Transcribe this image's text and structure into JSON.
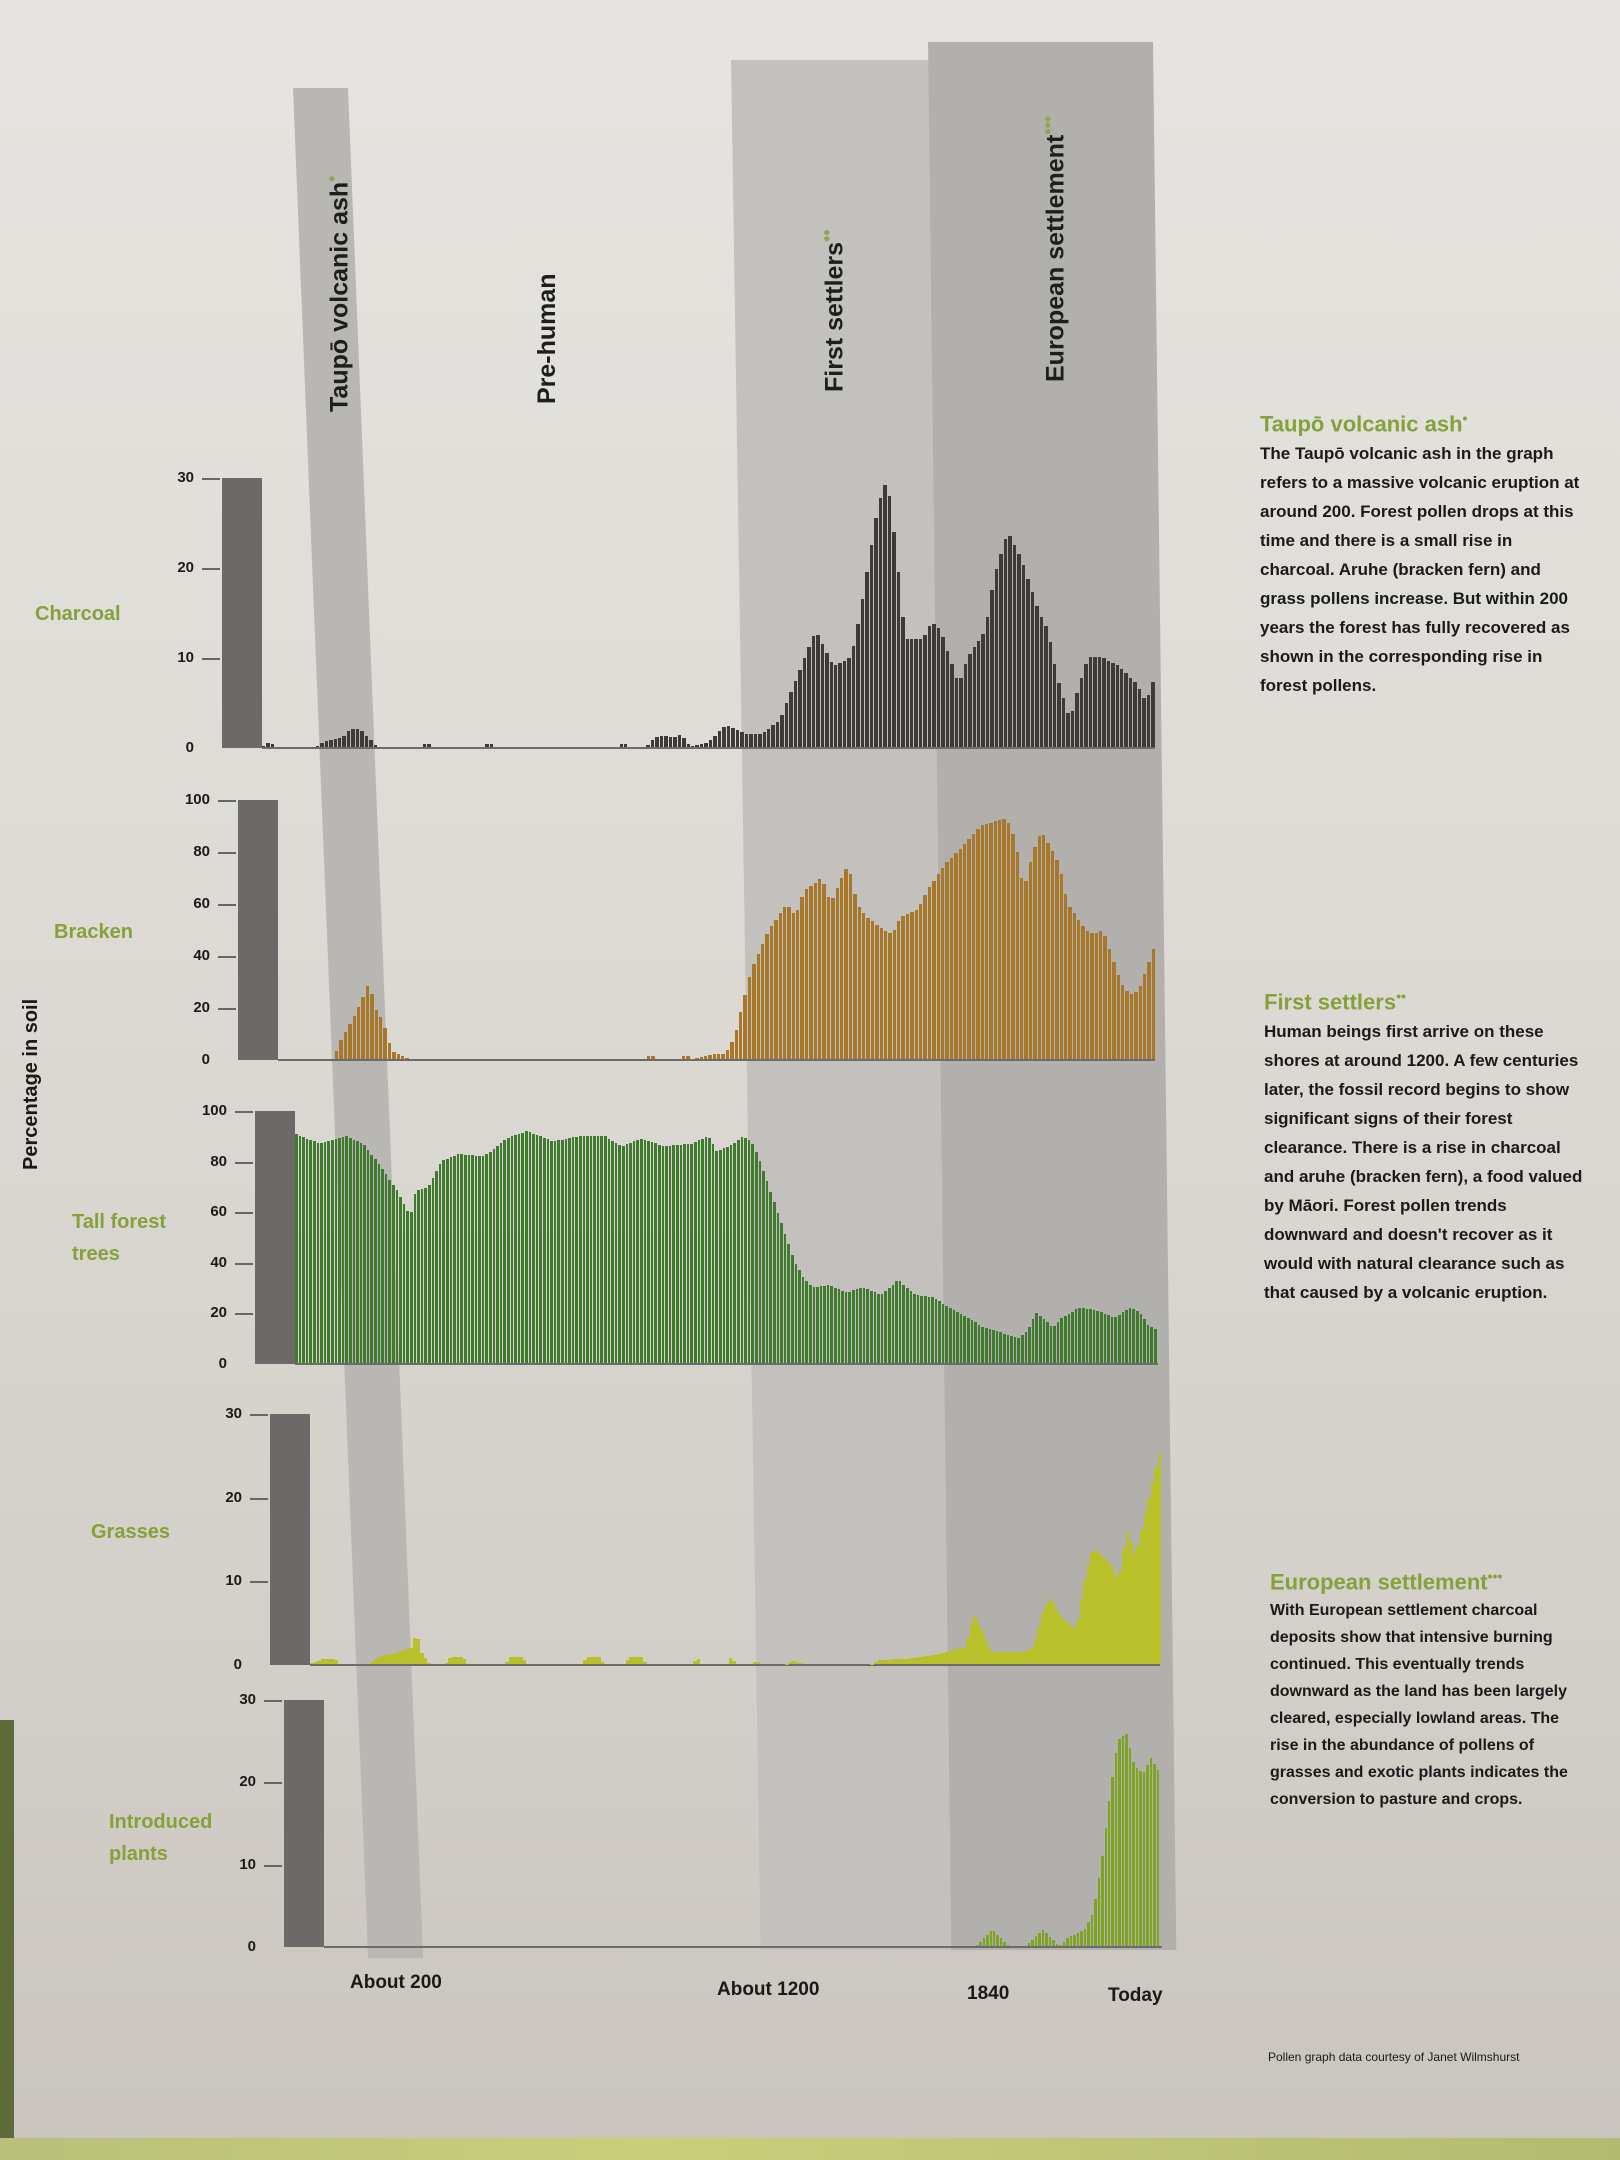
{
  "periods": [
    {
      "label": "Taupō volcanic ash",
      "dots": "•"
    },
    {
      "label": "Pre-human",
      "dots": ""
    },
    {
      "label": "First settlers",
      "dots": "••"
    },
    {
      "label": "European settlement",
      "dots": "•••"
    }
  ],
  "y_axis_title": "Percentage in soil",
  "x_labels": [
    "About 200",
    "About 1200",
    "1840",
    "Today"
  ],
  "notes": [
    {
      "title": "Taupō volcanic ash",
      "dots": "•",
      "body": "The Taupō volcanic ash in the graph refers to a massive volcanic eruption at around 200. Forest pollen drops at this time and there is a small rise in charcoal. Aruhe (bracken fern) and grass pollens increase. But within 200 years the forest has fully recovered as shown in the corresponding rise in forest pollens."
    },
    {
      "title": "First settlers",
      "dots": "••",
      "body": "Human beings first arrive on these shores at around 1200. A few centuries later, the fossil record begins to show significant signs of their forest clearance. There is a rise in charcoal and aruhe (bracken fern), a food valued by Māori. Forest pollen trends downward and doesn't recover as it would with natural clearance such as that caused by a volcanic eruption."
    },
    {
      "title": "European settlement",
      "dots": "•••",
      "body": "With European settlement charcoal deposits show that intensive burning continued. This eventually trends downward as the land has been largely cleared, especially lowland areas. The rise in the abundance of pollens of grasses and exotic plants indicates the conversion to pasture and crops."
    }
  ],
  "credit": "Pollen graph data courtesy of Janet Wilmshurst",
  "colors": {
    "charcoal": "#3f3a3a",
    "bracken": "#a8782a",
    "tall_forest": "#3f7a2e",
    "grasses": "#b8c12a",
    "introduced": "#7fa323",
    "label_green": "#86a03a"
  },
  "series_labels": [
    "Charcoal",
    "Bracken",
    "Tall forest trees",
    "Grasses",
    "Introduced plants"
  ],
  "ticks": {
    "charcoal": [
      "30",
      "20",
      "10",
      "0"
    ],
    "bracken": [
      "100",
      "80",
      "60",
      "40",
      "20",
      "0"
    ],
    "tall_forest": [
      "100",
      "80",
      "60",
      "40",
      "20",
      "0"
    ],
    "grasses": [
      "30",
      "20",
      "10",
      "0"
    ],
    "introduced": [
      "30",
      "20",
      "10",
      "0"
    ]
  },
  "chart_data": {
    "type": "bar",
    "title": "Pollen and charcoal record in soil",
    "ylabel": "Percentage in soil",
    "xlabel": "",
    "x_ticks": [
      "About 200",
      "About 1200",
      "1840",
      "Today"
    ],
    "x_tick_positions": [
      0.13,
      0.55,
      0.79,
      0.97
    ],
    "periods": [
      {
        "name": "Taupō volcanic ash",
        "x_range": [
          0.08,
          0.15
        ]
      },
      {
        "name": "Pre-human",
        "x_range": [
          0.15,
          0.5
        ]
      },
      {
        "name": "First settlers",
        "x_range": [
          0.5,
          0.74
        ]
      },
      {
        "name": "European settlement",
        "x_range": [
          0.74,
          1.0
        ]
      }
    ],
    "series": [
      {
        "name": "Charcoal",
        "ylim": [
          0,
          30
        ],
        "bars": 200,
        "keyframes": [
          [
            0,
            0
          ],
          [
            0.01,
            0.6
          ],
          [
            0.015,
            0
          ],
          [
            0.06,
            0
          ],
          [
            0.07,
            0.6
          ],
          [
            0.09,
            1
          ],
          [
            0.1,
            2
          ],
          [
            0.11,
            2
          ],
          [
            0.12,
            1
          ],
          [
            0.13,
            0
          ],
          [
            0.18,
            0
          ],
          [
            0.185,
            0.7
          ],
          [
            0.19,
            0
          ],
          [
            0.25,
            0
          ],
          [
            0.255,
            0.7
          ],
          [
            0.26,
            0
          ],
          [
            0.4,
            0
          ],
          [
            0.405,
            0.7
          ],
          [
            0.41,
            0
          ],
          [
            0.43,
            0
          ],
          [
            0.44,
            1
          ],
          [
            0.45,
            1.3
          ],
          [
            0.46,
            1
          ],
          [
            0.47,
            1.4
          ],
          [
            0.48,
            0
          ],
          [
            0.5,
            0.5
          ],
          [
            0.51,
            1.5
          ],
          [
            0.52,
            2.5
          ],
          [
            0.54,
            1.5
          ],
          [
            0.56,
            1.5
          ],
          [
            0.58,
            3
          ],
          [
            0.6,
            8
          ],
          [
            0.62,
            13
          ],
          [
            0.63,
            11
          ],
          [
            0.64,
            9
          ],
          [
            0.66,
            10
          ],
          [
            0.67,
            15
          ],
          [
            0.69,
            27
          ],
          [
            0.7,
            30
          ],
          [
            0.71,
            22
          ],
          [
            0.72,
            12
          ],
          [
            0.74,
            12
          ],
          [
            0.75,
            14
          ],
          [
            0.76,
            13
          ],
          [
            0.78,
            7
          ],
          [
            0.79,
            10
          ],
          [
            0.81,
            13
          ],
          [
            0.82,
            19
          ],
          [
            0.835,
            24
          ],
          [
            0.85,
            21
          ],
          [
            0.87,
            15
          ],
          [
            0.88,
            13
          ],
          [
            0.89,
            8
          ],
          [
            0.905,
            3
          ],
          [
            0.915,
            7
          ],
          [
            0.925,
            10
          ],
          [
            0.94,
            10
          ],
          [
            0.96,
            9
          ],
          [
            0.98,
            7
          ],
          [
            0.99,
            5
          ],
          [
            1.0,
            8
          ]
        ]
      },
      {
        "name": "Bracken",
        "ylim": [
          0,
          100
        ],
        "bars": 200,
        "keyframes": [
          [
            0,
            0
          ],
          [
            0.065,
            0
          ],
          [
            0.07,
            6
          ],
          [
            0.09,
            18
          ],
          [
            0.105,
            30
          ],
          [
            0.11,
            20
          ],
          [
            0.12,
            15
          ],
          [
            0.13,
            3
          ],
          [
            0.145,
            1
          ],
          [
            0.15,
            0
          ],
          [
            0.42,
            0
          ],
          [
            0.425,
            2
          ],
          [
            0.43,
            0
          ],
          [
            0.46,
            0
          ],
          [
            0.465,
            2
          ],
          [
            0.47,
            0
          ],
          [
            0.5,
            2
          ],
          [
            0.51,
            2
          ],
          [
            0.52,
            8
          ],
          [
            0.54,
            35
          ],
          [
            0.56,
            50
          ],
          [
            0.57,
            55
          ],
          [
            0.58,
            60
          ],
          [
            0.59,
            55
          ],
          [
            0.6,
            65
          ],
          [
            0.62,
            70
          ],
          [
            0.63,
            60
          ],
          [
            0.64,
            68
          ],
          [
            0.65,
            75
          ],
          [
            0.66,
            60
          ],
          [
            0.67,
            55
          ],
          [
            0.69,
            50
          ],
          [
            0.7,
            48
          ],
          [
            0.71,
            55
          ],
          [
            0.73,
            58
          ],
          [
            0.74,
            65
          ],
          [
            0.76,
            75
          ],
          [
            0.78,
            82
          ],
          [
            0.8,
            90
          ],
          [
            0.82,
            92
          ],
          [
            0.83,
            93
          ],
          [
            0.84,
            85
          ],
          [
            0.85,
            65
          ],
          [
            0.86,
            80
          ],
          [
            0.87,
            88
          ],
          [
            0.88,
            82
          ],
          [
            0.89,
            75
          ],
          [
            0.9,
            60
          ],
          [
            0.92,
            50
          ],
          [
            0.93,
            48
          ],
          [
            0.94,
            50
          ],
          [
            0.95,
            40
          ],
          [
            0.96,
            30
          ],
          [
            0.97,
            25
          ],
          [
            0.98,
            26
          ],
          [
            0.99,
            35
          ],
          [
            1.0,
            45
          ]
        ]
      },
      {
        "name": "Tall forest trees",
        "ylim": [
          0,
          100
        ],
        "bars": 240,
        "keyframes": [
          [
            0,
            91
          ],
          [
            0.03,
            87
          ],
          [
            0.06,
            90
          ],
          [
            0.08,
            87
          ],
          [
            0.1,
            78
          ],
          [
            0.12,
            68
          ],
          [
            0.13,
            61
          ],
          [
            0.135,
            59
          ],
          [
            0.14,
            68
          ],
          [
            0.155,
            70
          ],
          [
            0.17,
            80
          ],
          [
            0.19,
            83
          ],
          [
            0.22,
            82
          ],
          [
            0.25,
            90
          ],
          [
            0.27,
            92
          ],
          [
            0.3,
            88
          ],
          [
            0.33,
            90
          ],
          [
            0.36,
            90
          ],
          [
            0.38,
            86
          ],
          [
            0.4,
            89
          ],
          [
            0.43,
            86
          ],
          [
            0.46,
            87
          ],
          [
            0.48,
            90
          ],
          [
            0.49,
            84
          ],
          [
            0.51,
            87
          ],
          [
            0.52,
            90
          ],
          [
            0.53,
            88
          ],
          [
            0.54,
            80
          ],
          [
            0.55,
            70
          ],
          [
            0.56,
            60
          ],
          [
            0.57,
            50
          ],
          [
            0.58,
            40
          ],
          [
            0.59,
            34
          ],
          [
            0.6,
            30
          ],
          [
            0.62,
            31
          ],
          [
            0.64,
            28
          ],
          [
            0.66,
            30
          ],
          [
            0.68,
            27
          ],
          [
            0.7,
            33
          ],
          [
            0.72,
            27
          ],
          [
            0.74,
            26
          ],
          [
            0.76,
            22
          ],
          [
            0.78,
            18
          ],
          [
            0.8,
            14
          ],
          [
            0.82,
            12
          ],
          [
            0.84,
            10
          ],
          [
            0.85,
            13
          ],
          [
            0.86,
            20
          ],
          [
            0.87,
            17
          ],
          [
            0.88,
            14
          ],
          [
            0.89,
            18
          ],
          [
            0.91,
            22
          ],
          [
            0.93,
            21
          ],
          [
            0.95,
            18
          ],
          [
            0.97,
            22
          ],
          [
            0.98,
            20
          ],
          [
            0.99,
            15
          ],
          [
            1.0,
            13
          ]
        ]
      },
      {
        "name": "Grasses",
        "ylim": [
          0,
          30
        ],
        "bars": 240,
        "keyframes": [
          [
            0,
            0
          ],
          [
            0.015,
            0.6
          ],
          [
            0.03,
            0.6
          ],
          [
            0.035,
            0
          ],
          [
            0.07,
            0
          ],
          [
            0.08,
            0.8
          ],
          [
            0.1,
            1.3
          ],
          [
            0.12,
            2
          ],
          [
            0.125,
            4
          ],
          [
            0.13,
            1.5
          ],
          [
            0.14,
            0
          ],
          [
            0.16,
            0
          ],
          [
            0.165,
            0.8
          ],
          [
            0.18,
            0.8
          ],
          [
            0.185,
            0
          ],
          [
            0.23,
            0
          ],
          [
            0.235,
            0.8
          ],
          [
            0.25,
            0.8
          ],
          [
            0.255,
            0
          ],
          [
            0.32,
            0
          ],
          [
            0.325,
            0.8
          ],
          [
            0.34,
            0.8
          ],
          [
            0.345,
            0
          ],
          [
            0.37,
            0
          ],
          [
            0.375,
            0.8
          ],
          [
            0.39,
            0.8
          ],
          [
            0.395,
            0
          ],
          [
            0.45,
            0
          ],
          [
            0.455,
            0.8
          ],
          [
            0.46,
            0
          ],
          [
            0.49,
            0
          ],
          [
            0.495,
            1
          ],
          [
            0.5,
            0
          ],
          [
            0.52,
            0
          ],
          [
            0.525,
            0.5
          ],
          [
            0.53,
            0
          ],
          [
            0.56,
            0
          ],
          [
            0.57,
            0.4
          ],
          [
            0.58,
            0
          ],
          [
            0.66,
            0
          ],
          [
            0.67,
            0.5
          ],
          [
            0.7,
            0.6
          ],
          [
            0.73,
            1
          ],
          [
            0.75,
            1.5
          ],
          [
            0.77,
            2
          ],
          [
            0.78,
            6
          ],
          [
            0.79,
            4
          ],
          [
            0.8,
            1.5
          ],
          [
            0.83,
            1.5
          ],
          [
            0.84,
            1.5
          ],
          [
            0.85,
            2
          ],
          [
            0.86,
            6
          ],
          [
            0.87,
            8
          ],
          [
            0.88,
            6
          ],
          [
            0.9,
            4
          ],
          [
            0.91,
            10
          ],
          [
            0.92,
            14
          ],
          [
            0.94,
            12
          ],
          [
            0.95,
            10
          ],
          [
            0.96,
            16
          ],
          [
            0.97,
            13
          ],
          [
            0.99,
            22
          ],
          [
            1.0,
            26
          ]
        ]
      },
      {
        "name": "Introduced plants",
        "ylim": [
          0,
          30
        ],
        "bars": 240,
        "keyframes": [
          [
            0,
            0
          ],
          [
            0.78,
            0
          ],
          [
            0.79,
            1
          ],
          [
            0.8,
            2
          ],
          [
            0.81,
            1
          ],
          [
            0.82,
            0
          ],
          [
            0.84,
            0
          ],
          [
            0.85,
            1
          ],
          [
            0.86,
            2
          ],
          [
            0.87,
            1
          ],
          [
            0.88,
            0
          ],
          [
            0.89,
            1
          ],
          [
            0.91,
            2
          ],
          [
            0.92,
            4
          ],
          [
            0.93,
            10
          ],
          [
            0.94,
            18
          ],
          [
            0.95,
            25
          ],
          [
            0.96,
            26
          ],
          [
            0.97,
            22
          ],
          [
            0.98,
            21
          ],
          [
            0.99,
            23
          ],
          [
            1.0,
            21
          ]
        ]
      }
    ]
  }
}
